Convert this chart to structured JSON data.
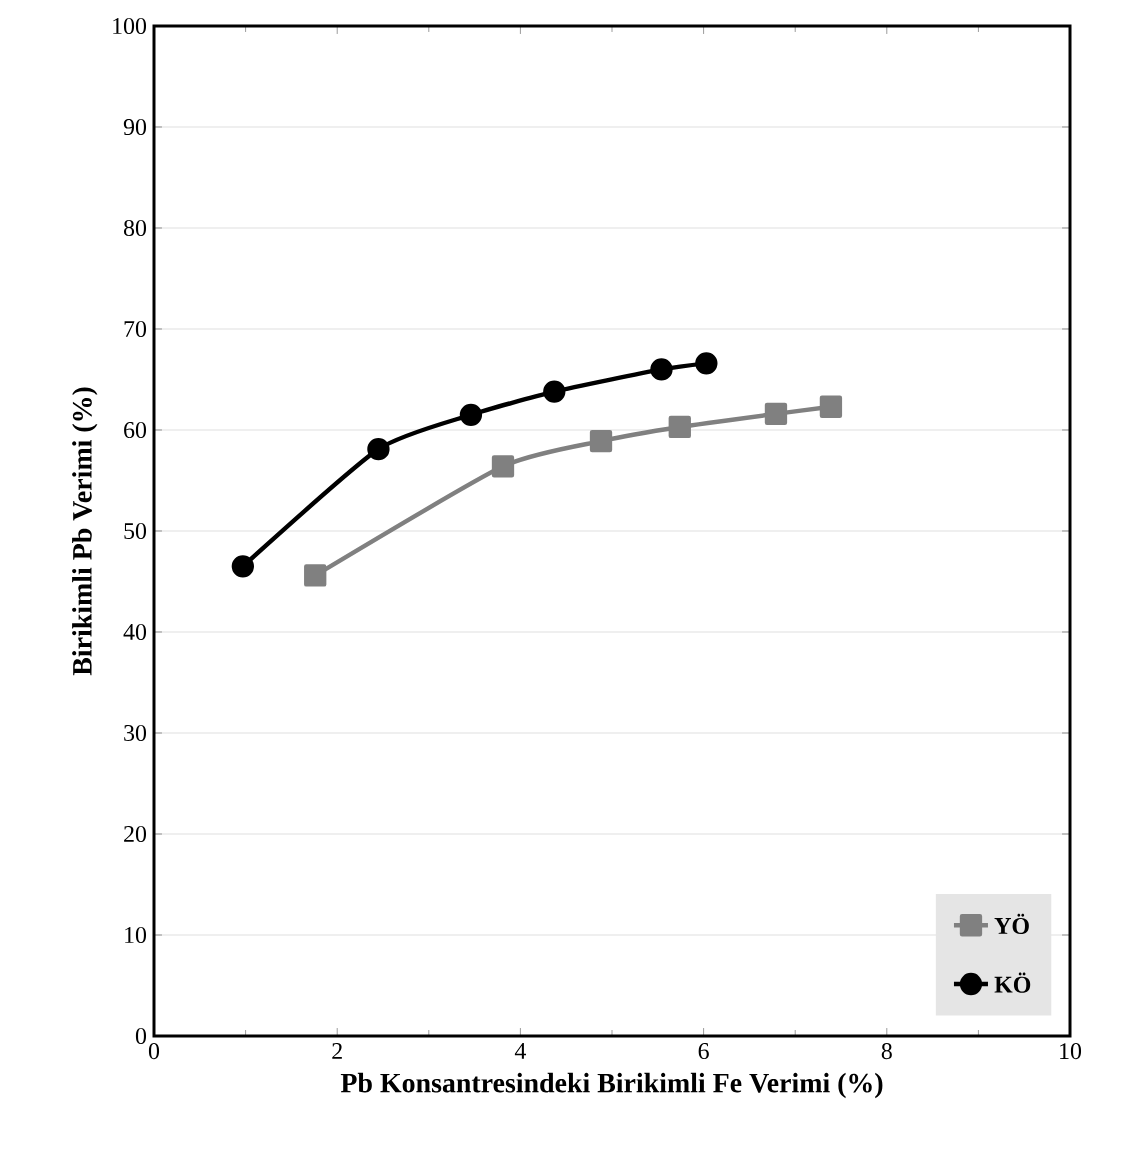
{
  "chart_data": {
    "type": "line",
    "xlabel": "Pb Konsantresindeki Birikimli Fe Verimi (%)",
    "ylabel": "Birikimli Pb Verimi (%)",
    "xlim": [
      0,
      10
    ],
    "xticks": [
      0,
      2,
      4,
      6,
      8,
      10
    ],
    "ylim": [
      0,
      100
    ],
    "yticks": [
      0,
      10,
      20,
      30,
      40,
      50,
      60,
      70,
      80,
      90,
      100
    ],
    "grid": "y",
    "legend": "bottom right",
    "series": [
      {
        "name": "YÖ",
        "color": "#808080",
        "marker": "square",
        "x": [
          1.76,
          3.81,
          4.88,
          5.74,
          6.79,
          7.39
        ],
        "values": [
          45.6,
          56.4,
          58.9,
          60.3,
          61.6,
          62.3
        ]
      },
      {
        "name": "KÖ",
        "color": "#000000",
        "marker": "circle",
        "x": [
          0.97,
          2.45,
          3.46,
          4.37,
          5.54,
          6.03
        ],
        "values": [
          46.5,
          58.1,
          61.5,
          63.8,
          66.0,
          66.6
        ]
      }
    ]
  }
}
